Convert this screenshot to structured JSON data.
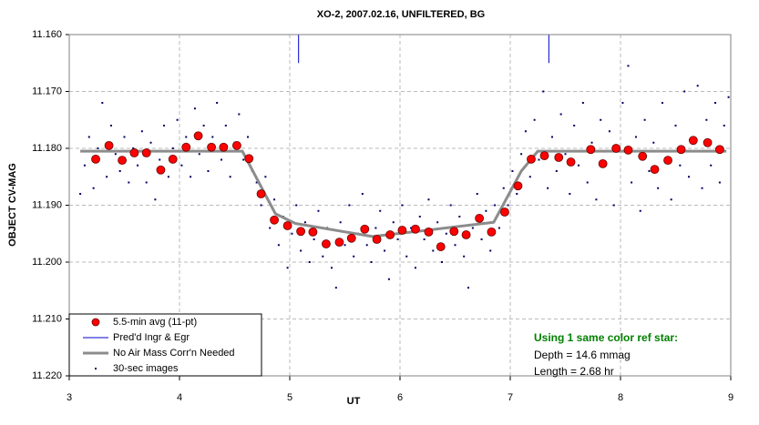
{
  "chart_data": {
    "type": "scatter",
    "title": "XO-2, 2007.02.16, UNFILTERED, BG",
    "xlabel": "UT",
    "ylabel": "OBJECT CV-MAG",
    "xlim": [
      3,
      9
    ],
    "xticks": [
      3,
      4,
      5,
      6,
      7,
      8,
      9
    ],
    "ylim": [
      11.22,
      11.16
    ],
    "yticks": [
      {
        "value": 11.22,
        "label": "11.220"
      },
      {
        "value": 11.21,
        "label": "11.210"
      },
      {
        "value": 11.2,
        "label": "11.200"
      },
      {
        "value": 11.19,
        "label": "11.190"
      },
      {
        "value": 11.18,
        "label": "11.180"
      },
      {
        "value": 11.17,
        "label": "11.170"
      },
      {
        "value": 11.16,
        "label": "11.160"
      }
    ],
    "grid": true,
    "legend": "lower left",
    "series": [
      {
        "name": "5.5-min avg (11-pt)",
        "style": "marker",
        "color": "#ff0000",
        "x": [
          3.24,
          3.36,
          3.48,
          3.59,
          3.7,
          3.83,
          3.94,
          4.06,
          4.17,
          4.29,
          4.4,
          4.52,
          4.63,
          4.74,
          4.86,
          4.98,
          5.1,
          5.21,
          5.33,
          5.45,
          5.56,
          5.68,
          5.79,
          5.91,
          6.02,
          6.14,
          6.26,
          6.37,
          6.49,
          6.6,
          6.72,
          6.83,
          6.95,
          7.07,
          7.19,
          7.31,
          7.44,
          7.55,
          7.73,
          7.84,
          7.96,
          8.07,
          8.2,
          8.31,
          8.43,
          8.55,
          8.66,
          8.79,
          8.9
        ],
        "values": [
          11.1819,
          11.1795,
          11.1821,
          11.1808,
          11.1808,
          11.1838,
          11.1819,
          11.1798,
          11.1778,
          11.1798,
          11.1798,
          11.1795,
          11.1818,
          11.188,
          11.1926,
          11.1936,
          11.1946,
          11.1947,
          11.1968,
          11.1965,
          11.1958,
          11.1942,
          11.196,
          11.1952,
          11.1944,
          11.1942,
          11.1947,
          11.1973,
          11.1946,
          11.1952,
          11.1923,
          11.1947,
          11.1912,
          11.1866,
          11.1819,
          11.1813,
          11.1816,
          11.1824,
          11.1802,
          11.1827,
          11.18,
          11.1803,
          11.1814,
          11.1837,
          11.1821,
          11.1802,
          11.1786,
          11.179,
          11.1802
        ]
      },
      {
        "name": "Pred'd Ingr & Egr",
        "style": "vline",
        "color": "#0000cc",
        "x": [
          5.08,
          7.35
        ],
        "values": [
          11.16,
          11.165
        ]
      },
      {
        "name": "No Air Mass Corr'n Needed",
        "style": "line",
        "color": "#8c8c8c",
        "x": [
          3.1,
          4.57,
          4.87,
          5.05,
          5.75,
          6.2,
          6.85,
          7.1,
          7.25,
          8.96
        ],
        "values": [
          11.1805,
          11.1805,
          11.1915,
          11.1932,
          11.1955,
          11.1945,
          11.193,
          11.184,
          11.1805,
          11.1805
        ]
      },
      {
        "name": "30-sec images",
        "style": "dot",
        "color": "#000066",
        "x": [
          3.1,
          3.14,
          3.18,
          3.22,
          3.26,
          3.3,
          3.34,
          3.38,
          3.42,
          3.46,
          3.5,
          3.54,
          3.58,
          3.62,
          3.66,
          3.7,
          3.74,
          3.78,
          3.82,
          3.86,
          3.9,
          3.94,
          3.98,
          4.02,
          4.06,
          4.1,
          4.14,
          4.18,
          4.22,
          4.26,
          4.3,
          4.34,
          4.38,
          4.42,
          4.46,
          4.5,
          4.54,
          4.58,
          4.62,
          4.66,
          4.7,
          4.74,
          4.78,
          4.82,
          4.86,
          4.9,
          4.94,
          4.98,
          5.02,
          5.06,
          5.1,
          5.14,
          5.18,
          5.22,
          5.26,
          5.3,
          5.34,
          5.38,
          5.42,
          5.46,
          5.5,
          5.54,
          5.58,
          5.62,
          5.66,
          5.7,
          5.74,
          5.78,
          5.82,
          5.86,
          5.9,
          5.94,
          5.98,
          6.02,
          6.06,
          6.1,
          6.14,
          6.18,
          6.22,
          6.26,
          6.3,
          6.34,
          6.38,
          6.42,
          6.46,
          6.5,
          6.54,
          6.58,
          6.62,
          6.66,
          6.7,
          6.74,
          6.78,
          6.82,
          6.86,
          6.9,
          6.94,
          6.98,
          7.02,
          7.06,
          7.1,
          7.14,
          7.18,
          7.22,
          7.26,
          7.3,
          7.34,
          7.38,
          7.42,
          7.46,
          7.5,
          7.54,
          7.58,
          7.62,
          7.66,
          7.7,
          7.74,
          7.78,
          7.82,
          7.86,
          7.9,
          7.94,
          7.98,
          8.02,
          8.07,
          8.1,
          8.14,
          8.18,
          8.22,
          8.26,
          8.3,
          8.34,
          8.38,
          8.42,
          8.46,
          8.5,
          8.54,
          8.58,
          8.62,
          8.66,
          8.7,
          8.74,
          8.78,
          8.82,
          8.86,
          8.9,
          8.94,
          8.98
        ],
        "values": [
          11.188,
          11.183,
          11.178,
          11.187,
          11.18,
          11.172,
          11.185,
          11.176,
          11.181,
          11.184,
          11.178,
          11.186,
          11.18,
          11.183,
          11.177,
          11.186,
          11.179,
          11.189,
          11.182,
          11.176,
          11.185,
          11.18,
          11.175,
          11.183,
          11.178,
          11.185,
          11.173,
          11.181,
          11.176,
          11.184,
          11.178,
          11.172,
          11.182,
          11.176,
          11.185,
          11.179,
          11.174,
          11.182,
          11.178,
          11.184,
          11.186,
          11.19,
          11.185,
          11.194,
          11.189,
          11.197,
          11.192,
          11.201,
          11.195,
          11.19,
          11.198,
          11.193,
          11.2,
          11.196,
          11.191,
          11.199,
          11.194,
          11.201,
          11.2045,
          11.193,
          11.197,
          11.19,
          11.199,
          11.195,
          11.188,
          11.197,
          11.2,
          11.194,
          11.191,
          11.198,
          11.203,
          11.193,
          11.196,
          11.19,
          11.199,
          11.194,
          11.201,
          11.192,
          11.196,
          11.189,
          11.198,
          11.193,
          11.2,
          11.195,
          11.19,
          11.197,
          11.192,
          11.199,
          11.2045,
          11.194,
          11.188,
          11.196,
          11.191,
          11.198,
          11.19,
          11.194,
          11.187,
          11.19,
          11.184,
          11.188,
          11.181,
          11.177,
          11.185,
          11.175,
          11.182,
          11.17,
          11.187,
          11.178,
          11.184,
          11.174,
          11.181,
          11.188,
          11.176,
          11.183,
          11.172,
          11.186,
          11.179,
          11.189,
          11.175,
          11.183,
          11.177,
          11.19,
          11.18,
          11.172,
          11.1655,
          11.186,
          11.178,
          11.191,
          11.175,
          11.184,
          11.179,
          11.187,
          11.172,
          11.182,
          11.189,
          11.176,
          11.183,
          11.17,
          11.185,
          11.178,
          11.169,
          11.187,
          11.175,
          11.183,
          11.172,
          11.186,
          11.176,
          11.171
        ]
      }
    ],
    "annotation": {
      "title": "Using 1 same color ref star:",
      "color": "#008000",
      "lines": [
        "Depth = 14.6 mmag",
        "Length = 2.68 hr"
      ]
    }
  }
}
